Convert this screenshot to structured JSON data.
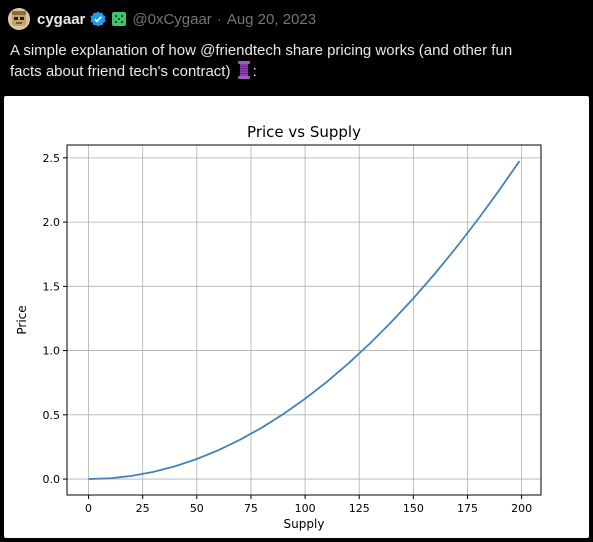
{
  "tweet": {
    "display_name": "cygaar",
    "handle": "@0xCygaar",
    "separator": "·",
    "date": "Aug 20, 2023",
    "text_line1": "A simple explanation of how @friendtech share pricing works (and other fun",
    "text_line2": "facts about friend tech's contract)",
    "text_suffix": ":"
  },
  "icons": {
    "avatar": "avatar",
    "verified": "verified-badge-icon",
    "affiliate": "affiliate-badge-icon",
    "thread": "thread-spool-icon"
  },
  "colors": {
    "verified": "#1d9bf0",
    "affiliate": "#3ec46d",
    "line": "#4682b4",
    "grid": "#b0b0b0"
  },
  "chart_data": {
    "type": "line",
    "title": "Price vs Supply",
    "xlabel": "Supply",
    "ylabel": "Price",
    "xlim": [
      -9.95,
      208.95
    ],
    "ylim": [
      -0.124,
      2.6
    ],
    "xticks": [
      0,
      25,
      50,
      75,
      100,
      125,
      150,
      175,
      200
    ],
    "xtick_labels": [
      "0",
      "25",
      "50",
      "75",
      "100",
      "125",
      "150",
      "175",
      "200"
    ],
    "yticks": [
      0.0,
      0.5,
      1.0,
      1.5,
      2.0,
      2.5
    ],
    "ytick_labels": [
      "0.0",
      "0.5",
      "1.0",
      "1.5",
      "2.0",
      "2.5"
    ],
    "grid": true,
    "series": [
      {
        "x": [
          0,
          10,
          20,
          30,
          40,
          50,
          60,
          70,
          80,
          90,
          100,
          110,
          120,
          130,
          140,
          150,
          160,
          170,
          180,
          190,
          199
        ],
        "values": [
          0.0,
          0.00625,
          0.025,
          0.05625,
          0.1,
          0.15625,
          0.225,
          0.30625,
          0.4,
          0.50625,
          0.625,
          0.75625,
          0.9,
          1.05625,
          1.225,
          1.40625,
          1.6,
          1.80625,
          2.025,
          2.25625,
          2.4751
        ]
      }
    ]
  }
}
